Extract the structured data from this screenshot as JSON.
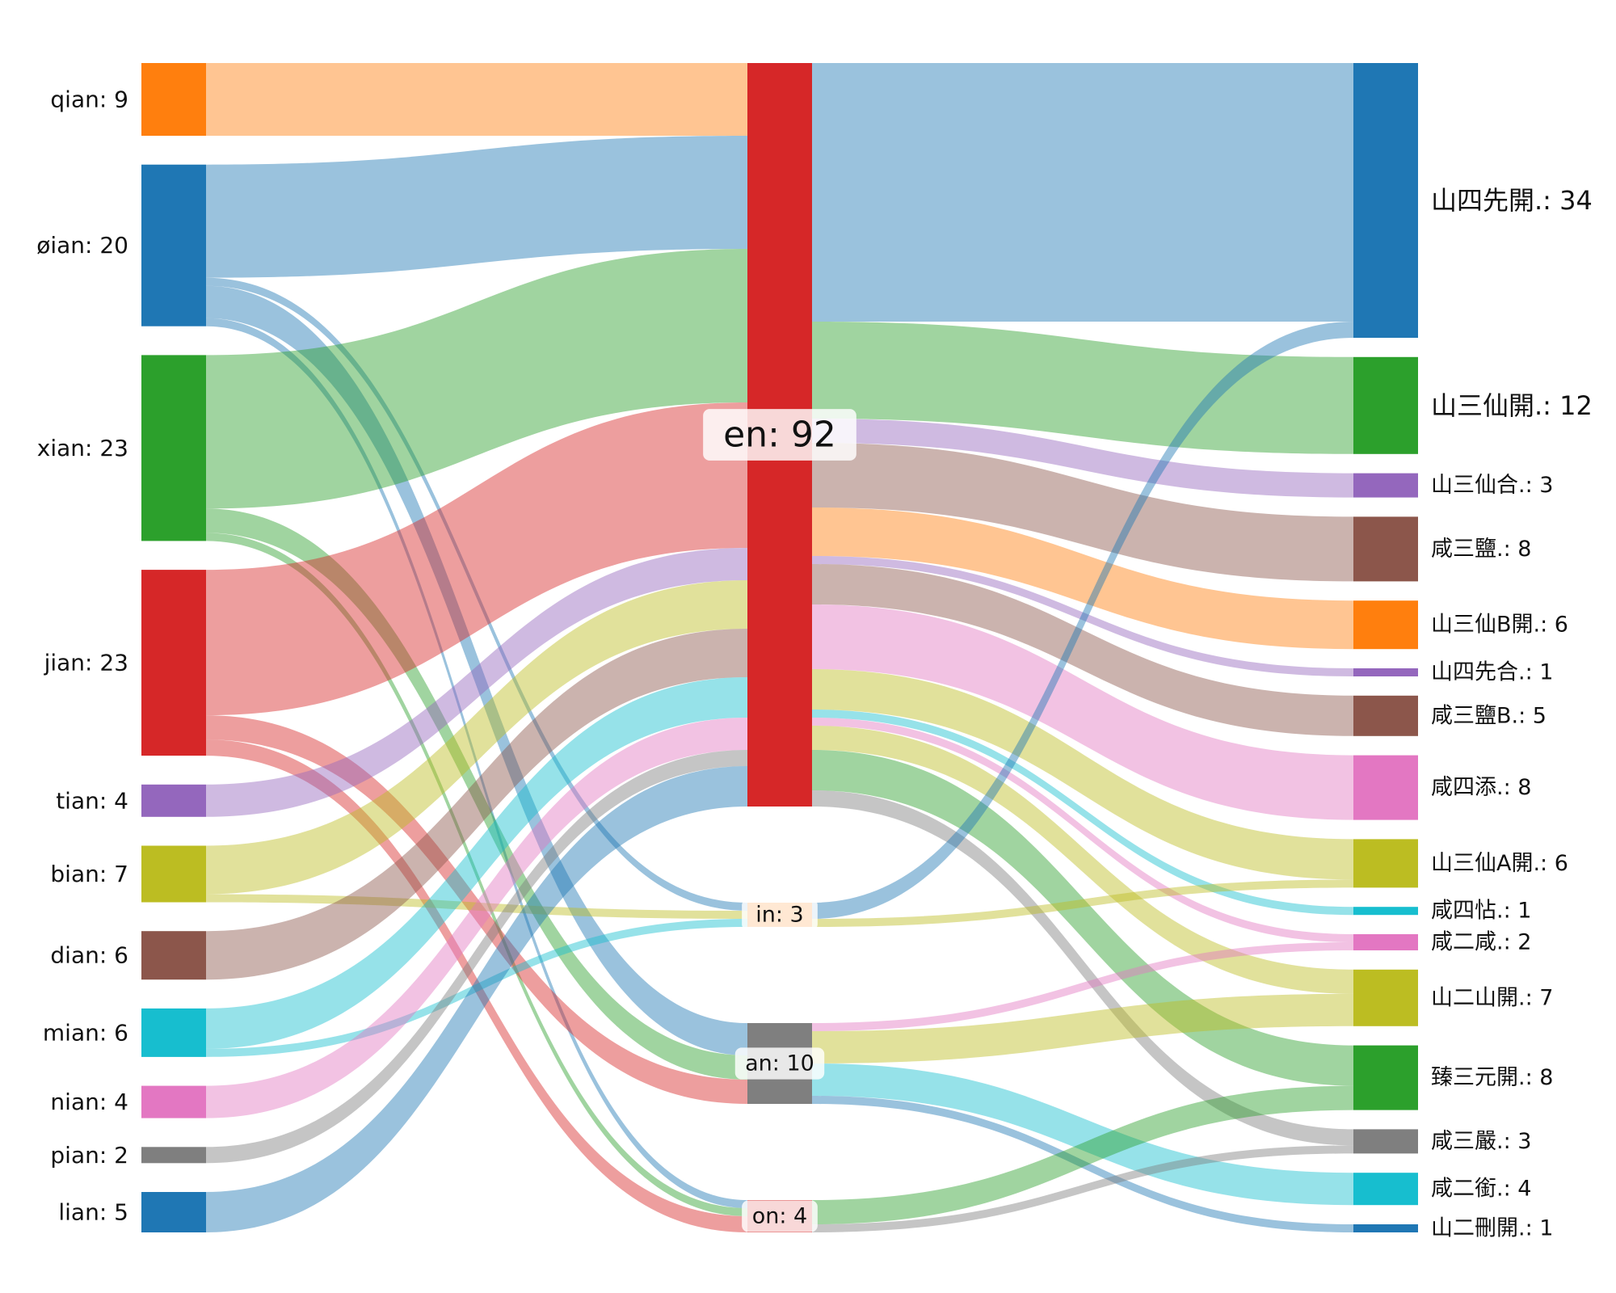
{
  "chart_data": {
    "type": "sankey",
    "title": "",
    "nodes": [
      {
        "id": "qian",
        "label": "qian: 9",
        "value": 9,
        "color": "#ff7f0e"
      },
      {
        "id": "øian",
        "label": "øian: 20",
        "value": 20,
        "color": "#1f77b4"
      },
      {
        "id": "xian",
        "label": "xian: 23",
        "value": 23,
        "color": "#2ca02c"
      },
      {
        "id": "jian",
        "label": "jian: 23",
        "value": 23,
        "color": "#d62728"
      },
      {
        "id": "tian",
        "label": "tian: 4",
        "value": 4,
        "color": "#9467bd"
      },
      {
        "id": "bian",
        "label": "bian: 7",
        "value": 7,
        "color": "#bcbd22"
      },
      {
        "id": "dian",
        "label": "dian: 6",
        "value": 6,
        "color": "#8c564b"
      },
      {
        "id": "mian",
        "label": "mian: 6",
        "value": 6,
        "color": "#17becf"
      },
      {
        "id": "nian",
        "label": "nian: 4",
        "value": 4,
        "color": "#e377c2"
      },
      {
        "id": "pian",
        "label": "pian: 2",
        "value": 2,
        "color": "#7f7f7f"
      },
      {
        "id": "lian",
        "label": "lian: 5",
        "value": 5,
        "color": "#1f77b4"
      },
      {
        "id": "en",
        "label": "en: 92",
        "value": 92,
        "color": "#d62728"
      },
      {
        "id": "in",
        "label": "in: 3",
        "value": 3,
        "color": "#ff7f0e"
      },
      {
        "id": "an",
        "label": "an: 10",
        "value": 10,
        "color": "#7f7f7f"
      },
      {
        "id": "on",
        "label": "on: 4",
        "value": 4,
        "color": "#d62728"
      },
      {
        "id": "r1",
        "label": "山四先開.: 34",
        "value": 34,
        "color": "#1f77b4"
      },
      {
        "id": "r2",
        "label": "山三仙開.: 12",
        "value": 12,
        "color": "#2ca02c"
      },
      {
        "id": "r3",
        "label": "山三仙合.: 3",
        "value": 3,
        "color": "#9467bd"
      },
      {
        "id": "r4",
        "label": "咸三鹽.: 8",
        "value": 8,
        "color": "#8c564b"
      },
      {
        "id": "r5",
        "label": "山三仙B開.: 6",
        "value": 6,
        "color": "#ff7f0e"
      },
      {
        "id": "r6",
        "label": "山四先合.: 1",
        "value": 1,
        "color": "#9467bd"
      },
      {
        "id": "r7",
        "label": "咸三鹽B.: 5",
        "value": 5,
        "color": "#8c564b"
      },
      {
        "id": "r8",
        "label": "咸四添.: 8",
        "value": 8,
        "color": "#e377c2"
      },
      {
        "id": "r9",
        "label": "山三仙A開.: 6",
        "value": 6,
        "color": "#bcbd22"
      },
      {
        "id": "r10",
        "label": "咸四怗.: 1",
        "value": 1,
        "color": "#17becf"
      },
      {
        "id": "r11",
        "label": "咸二咸.: 2",
        "value": 2,
        "color": "#e377c2"
      },
      {
        "id": "r12",
        "label": "山二山開.: 7",
        "value": 7,
        "color": "#bcbd22"
      },
      {
        "id": "r13",
        "label": "臻三元開.: 8",
        "value": 8,
        "color": "#2ca02c"
      },
      {
        "id": "r14",
        "label": "咸三嚴.: 3",
        "value": 3,
        "color": "#7f7f7f"
      },
      {
        "id": "r15",
        "label": "咸二銜.: 4",
        "value": 4,
        "color": "#17becf"
      },
      {
        "id": "r16",
        "label": "山二刪開.: 1",
        "value": 1,
        "color": "#1f77b4"
      }
    ],
    "columns": [
      [
        "qian",
        "øian",
        "xian",
        "jian",
        "tian",
        "bian",
        "dian",
        "mian",
        "nian",
        "pian",
        "lian"
      ],
      [
        "en",
        "in",
        "an",
        "on"
      ],
      [
        "r1",
        "r2",
        "r3",
        "r4",
        "r5",
        "r6",
        "r7",
        "r8",
        "r9",
        "r10",
        "r11",
        "r12",
        "r13",
        "r14",
        "r15",
        "r16"
      ]
    ],
    "links": [
      {
        "source": "qian",
        "target": "en",
        "value": 9
      },
      {
        "source": "øian",
        "target": "en",
        "value": 14
      },
      {
        "source": "øian",
        "target": "in",
        "value": 1
      },
      {
        "source": "øian",
        "target": "an",
        "value": 4
      },
      {
        "source": "øian",
        "target": "on",
        "value": 1
      },
      {
        "source": "xian",
        "target": "en",
        "value": 19
      },
      {
        "source": "xian",
        "target": "an",
        "value": 3
      },
      {
        "source": "xian",
        "target": "on",
        "value": 1
      },
      {
        "source": "jian",
        "target": "en",
        "value": 18
      },
      {
        "source": "jian",
        "target": "an",
        "value": 3
      },
      {
        "source": "jian",
        "target": "on",
        "value": 2
      },
      {
        "source": "tian",
        "target": "en",
        "value": 4
      },
      {
        "source": "bian",
        "target": "en",
        "value": 6
      },
      {
        "source": "bian",
        "target": "in",
        "value": 1
      },
      {
        "source": "dian",
        "target": "en",
        "value": 6
      },
      {
        "source": "mian",
        "target": "en",
        "value": 5
      },
      {
        "source": "mian",
        "target": "in",
        "value": 1
      },
      {
        "source": "nian",
        "target": "en",
        "value": 4
      },
      {
        "source": "pian",
        "target": "en",
        "value": 2
      },
      {
        "source": "lian",
        "target": "en",
        "value": 5
      },
      {
        "source": "en",
        "target": "r1",
        "value": 32
      },
      {
        "source": "en",
        "target": "r2",
        "value": 12
      },
      {
        "source": "en",
        "target": "r3",
        "value": 3
      },
      {
        "source": "en",
        "target": "r4",
        "value": 8
      },
      {
        "source": "en",
        "target": "r5",
        "value": 6
      },
      {
        "source": "en",
        "target": "r6",
        "value": 1
      },
      {
        "source": "en",
        "target": "r7",
        "value": 5
      },
      {
        "source": "en",
        "target": "r8",
        "value": 8
      },
      {
        "source": "en",
        "target": "r9",
        "value": 5
      },
      {
        "source": "en",
        "target": "r10",
        "value": 1
      },
      {
        "source": "en",
        "target": "r11",
        "value": 1
      },
      {
        "source": "en",
        "target": "r12",
        "value": 3
      },
      {
        "source": "en",
        "target": "r13",
        "value": 5
      },
      {
        "source": "en",
        "target": "r14",
        "value": 2
      },
      {
        "source": "in",
        "target": "r1",
        "value": 2
      },
      {
        "source": "in",
        "target": "r9",
        "value": 1
      },
      {
        "source": "an",
        "target": "r11",
        "value": 1
      },
      {
        "source": "an",
        "target": "r12",
        "value": 4
      },
      {
        "source": "an",
        "target": "r15",
        "value": 4
      },
      {
        "source": "an",
        "target": "r16",
        "value": 1
      },
      {
        "source": "on",
        "target": "r13",
        "value": 3
      },
      {
        "source": "on",
        "target": "r14",
        "value": 1
      }
    ]
  }
}
